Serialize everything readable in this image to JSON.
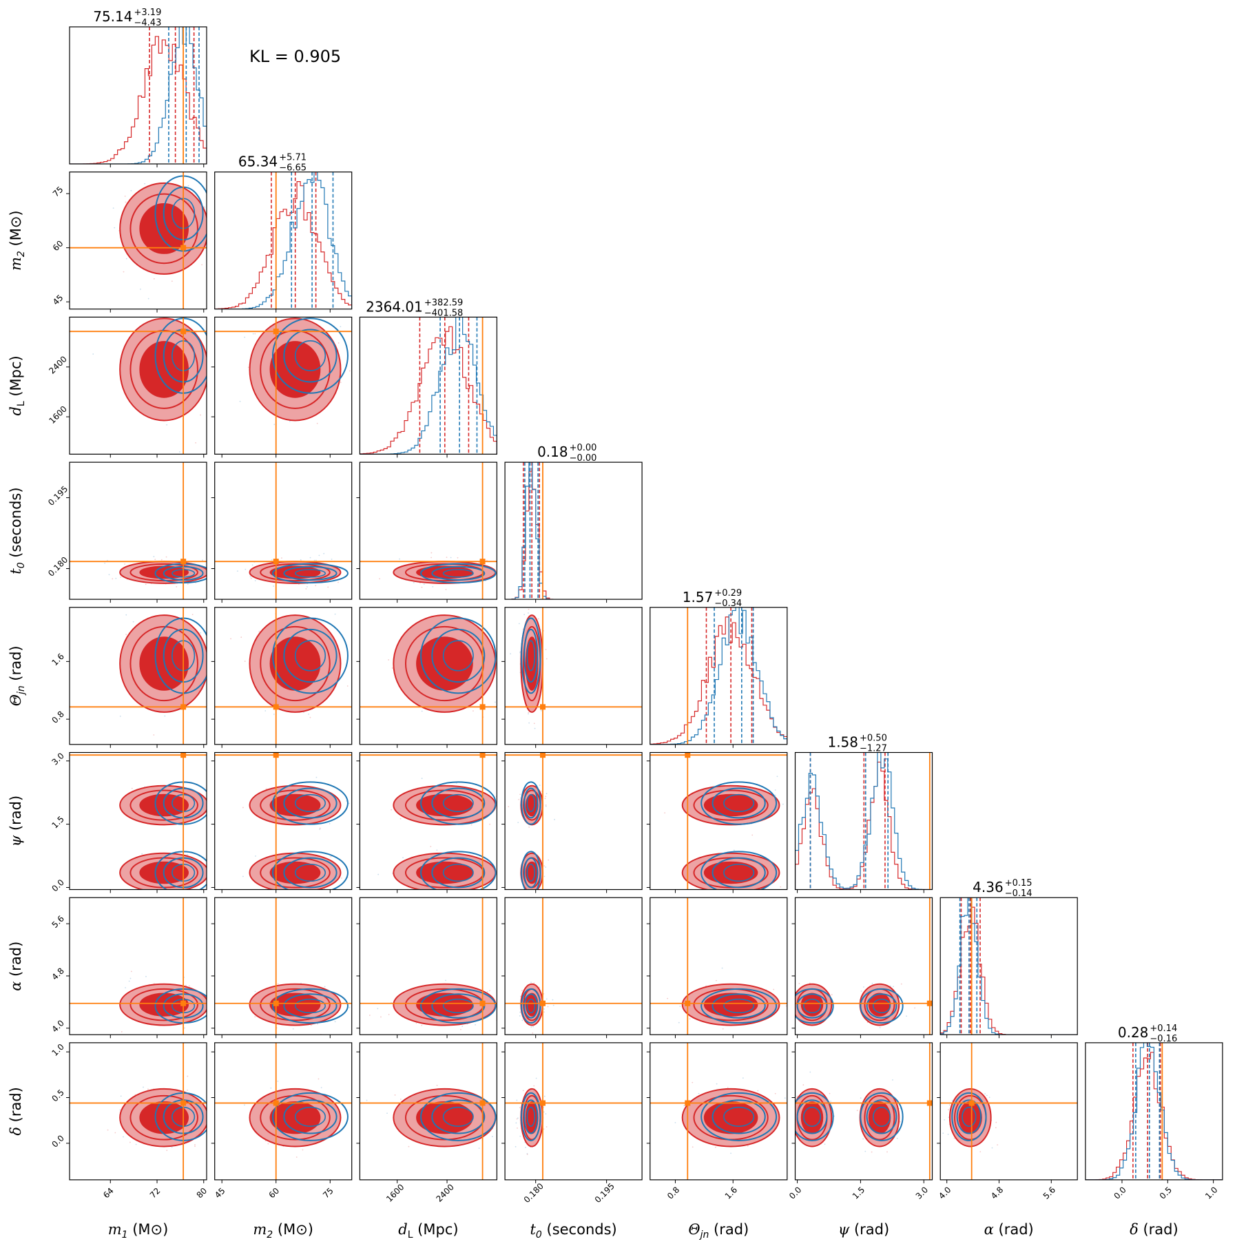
{
  "chart_data": {
    "type": "corner",
    "kl_label": "KL = 0.905",
    "colors": {
      "red": "#d62728",
      "red_fill": "#eda3a4",
      "blue": "#1f77b4",
      "truth": "#ff7f0e"
    },
    "parameters": [
      {
        "id": "m1",
        "label_main": "m",
        "label_sub": "1",
        "label_unit": " (M⊙)",
        "range": [
          57,
          80.5
        ],
        "ticks": [
          64,
          72,
          80
        ],
        "tick_labels": [
          "64",
          "72",
          "80"
        ],
        "truth": 76.5,
        "title": {
          "median": "75.14",
          "plus": "+3.19",
          "minus": "−4.43"
        },
        "red": {
          "mean": 73.2,
          "sd": 3.6,
          "q": [
            70.7,
            75.14,
            78.33
          ]
        },
        "blue": {
          "mean": 76.5,
          "sd": 2.4,
          "q": [
            74.0,
            77.0,
            79.2
          ]
        }
      },
      {
        "id": "m2",
        "label_main": "m",
        "label_sub": "2",
        "label_unit": " (M⊙)",
        "range": [
          43,
          81
        ],
        "ticks": [
          45,
          60,
          75
        ],
        "tick_labels": [
          "45",
          "60",
          "75"
        ],
        "truth": 60,
        "title": {
          "median": "65.34",
          "plus": "+5.71",
          "minus": "−6.65"
        },
        "red": {
          "mean": 65.3,
          "sd": 6.0,
          "q": [
            58.7,
            65.34,
            71.05
          ]
        },
        "blue": {
          "mean": 69.5,
          "sd": 5.2,
          "q": [
            64.3,
            70.0,
            75.8
          ]
        }
      },
      {
        "id": "dL",
        "label_main": "d",
        "label_sub": "L",
        "label_unit": " (Mpc)",
        "range": [
          1000,
          3200
        ],
        "ticks": [
          1600,
          2400
        ],
        "tick_labels": [
          "1600",
          "2400"
        ],
        "truth": 2970,
        "title": {
          "median": "2364.01",
          "plus": "+382.59",
          "minus": "−401.58"
        },
        "red": {
          "mean": 2360,
          "sd": 390,
          "q": [
            1962,
            2364,
            2747
          ]
        },
        "blue": {
          "mean": 2580,
          "sd": 300,
          "q": [
            2290,
            2600,
            2880
          ]
        }
      },
      {
        "id": "t0",
        "label_main": "t",
        "label_sub": "0",
        "label_unit": " (seconds)",
        "range": [
          0.1735,
          0.2025
        ],
        "ticks": [
          0.18,
          0.195
        ],
        "tick_labels": [
          "0.180",
          "0.195"
        ],
        "truth": 0.1815,
        "title": {
          "median": "0.18",
          "plus": "+0.00",
          "minus": "−0.00"
        },
        "red": {
          "mean": 0.1792,
          "sd": 0.0011,
          "q": [
            0.1774,
            0.1792,
            0.1808
          ]
        },
        "blue": {
          "mean": 0.179,
          "sd": 0.001,
          "q": [
            0.1777,
            0.1788,
            0.1805
          ]
        }
      },
      {
        "id": "theta",
        "label_main": "Θ",
        "label_sub": "jn",
        "label_unit": " (rad)",
        "range": [
          0.45,
          2.35
        ],
        "ticks": [
          0.8,
          1.6
        ],
        "tick_labels": [
          "0.8",
          "1.6"
        ],
        "truth": 0.97,
        "title": {
          "median": "1.57",
          "plus": "+0.29",
          "minus": "−0.34"
        },
        "red": {
          "mean": 1.57,
          "sd": 0.32,
          "q": [
            1.23,
            1.57,
            1.86
          ]
        },
        "blue": {
          "mean": 1.68,
          "sd": 0.26,
          "q": [
            1.34,
            1.72,
            1.88
          ]
        }
      },
      {
        "id": "psi",
        "label_main": "ψ",
        "label_sub": "",
        "label_unit": " (rad)",
        "range": [
          -0.05,
          3.2
        ],
        "ticks": [
          0.0,
          1.5,
          3.0
        ],
        "tick_labels": [
          "0.0",
          "1.5",
          "3.0"
        ],
        "truth": 3.14,
        "title": {
          "median": "1.58",
          "plus": "+0.50",
          "minus": "−1.27"
        },
        "red": {
          "bimodal": [
            [
              0.35,
              0.22,
              0.45
            ],
            [
              1.95,
              0.22,
              0.55
            ]
          ],
          "q": [
            0.31,
            1.58,
            2.08
          ]
        },
        "blue": {
          "bimodal": [
            [
              0.35,
              0.25,
              0.45
            ],
            [
              2.0,
              0.25,
              0.55
            ]
          ],
          "q": [
            0.31,
            1.62,
            2.15
          ]
        }
      },
      {
        "id": "alpha",
        "label_main": "α",
        "label_sub": "",
        "label_unit": " (rad)",
        "range": [
          3.9,
          6.0
        ],
        "ticks": [
          4.0,
          4.8,
          5.6
        ],
        "tick_labels": [
          "4.0",
          "4.8",
          "5.6"
        ],
        "truth": 4.38,
        "title": {
          "median": "4.36",
          "plus": "+0.15",
          "minus": "−0.14"
        },
        "red": {
          "mean": 4.36,
          "sd": 0.15,
          "q": [
            4.22,
            4.36,
            4.51
          ]
        },
        "blue": {
          "mean": 4.34,
          "sd": 0.13,
          "q": [
            4.2,
            4.34,
            4.46
          ]
        }
      },
      {
        "id": "delta",
        "label_main": "δ",
        "label_sub": "",
        "label_unit": " (rad)",
        "range": [
          -0.4,
          1.1
        ],
        "ticks": [
          0.0,
          0.5,
          1.0
        ],
        "tick_labels": [
          "0.0",
          "0.5",
          "1.0"
        ],
        "truth": 0.44,
        "title": {
          "median": "0.28",
          "plus": "+0.14",
          "minus": "−0.16"
        },
        "red": {
          "mean": 0.28,
          "sd": 0.15,
          "q": [
            0.12,
            0.28,
            0.42
          ]
        },
        "blue": {
          "mean": 0.29,
          "sd": 0.13,
          "q": [
            0.15,
            0.3,
            0.41
          ]
        }
      }
    ]
  }
}
